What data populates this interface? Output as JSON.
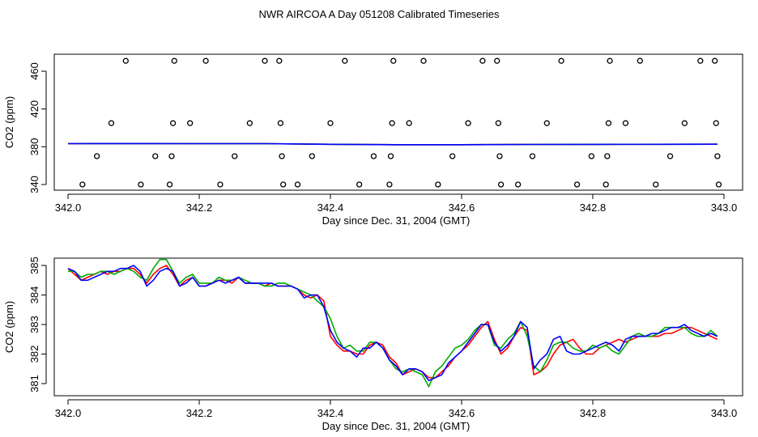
{
  "title": "NWR AIRCOA A  Day 051208  Calibrated Timeseries",
  "chart_data": [
    {
      "type": "scatter",
      "xlabel": "Day since Dec. 31, 2004 (GMT)",
      "ylabel": "CO2 (ppm)",
      "xlim": [
        342.0,
        343.0
      ],
      "ylim": [
        334,
        472
      ],
      "xticks": [
        342.0,
        342.2,
        342.4,
        342.6,
        342.8,
        343.0
      ],
      "xtick_labels": [
        "342.0",
        "342.2",
        "342.4",
        "342.6",
        "342.8",
        "343.0"
      ],
      "yticks": [
        340,
        380,
        420,
        460
      ],
      "ytick_labels": [
        "340",
        "380",
        "420",
        "460"
      ],
      "markers": [
        [
          342.022,
          340
        ],
        [
          342.044,
          370
        ],
        [
          342.066,
          405
        ],
        [
          342.088,
          471
        ],
        [
          342.111,
          340
        ],
        [
          342.133,
          370
        ],
        [
          342.155,
          340
        ],
        [
          342.158,
          370
        ],
        [
          342.16,
          405
        ],
        [
          342.162,
          471
        ],
        [
          342.186,
          405
        ],
        [
          342.21,
          471
        ],
        [
          342.232,
          340
        ],
        [
          342.254,
          370
        ],
        [
          342.277,
          405
        ],
        [
          342.3,
          471
        ],
        [
          342.322,
          471
        ],
        [
          342.324,
          405
        ],
        [
          342.326,
          370
        ],
        [
          342.328,
          340
        ],
        [
          342.35,
          340
        ],
        [
          342.372,
          370
        ],
        [
          342.4,
          405
        ],
        [
          342.422,
          471
        ],
        [
          342.444,
          340
        ],
        [
          342.466,
          370
        ],
        [
          342.49,
          340
        ],
        [
          342.492,
          370
        ],
        [
          342.494,
          405
        ],
        [
          342.496,
          471
        ],
        [
          342.52,
          405
        ],
        [
          342.542,
          471
        ],
        [
          342.564,
          340
        ],
        [
          342.586,
          370
        ],
        [
          342.61,
          405
        ],
        [
          342.632,
          471
        ],
        [
          342.654,
          471
        ],
        [
          342.656,
          405
        ],
        [
          342.658,
          370
        ],
        [
          342.66,
          340
        ],
        [
          342.686,
          340
        ],
        [
          342.708,
          370
        ],
        [
          342.73,
          405
        ],
        [
          342.752,
          471
        ],
        [
          342.776,
          340
        ],
        [
          342.798,
          370
        ],
        [
          342.82,
          340
        ],
        [
          342.822,
          370
        ],
        [
          342.824,
          405
        ],
        [
          342.826,
          471
        ],
        [
          342.85,
          405
        ],
        [
          342.872,
          471
        ],
        [
          342.896,
          340
        ],
        [
          342.918,
          370
        ],
        [
          342.94,
          405
        ],
        [
          342.964,
          471
        ],
        [
          342.986,
          471
        ],
        [
          342.988,
          405
        ],
        [
          342.99,
          370
        ],
        [
          342.992,
          340
        ]
      ],
      "series": [
        {
          "color": "#ff0000",
          "x": [
            342.0,
            342.1,
            342.2,
            342.3,
            342.4,
            342.5,
            342.6,
            342.7,
            342.8,
            342.9,
            342.99
          ],
          "y": [
            383.3,
            383.4,
            383.3,
            383.3,
            382.6,
            382.2,
            382.2,
            382.4,
            382.5,
            382.6,
            382.7
          ]
        },
        {
          "color": "#00aa00",
          "x": [
            342.0,
            342.1,
            342.2,
            342.3,
            342.4,
            342.5,
            342.6,
            342.7,
            342.8,
            342.9,
            342.99
          ],
          "y": [
            383.3,
            383.4,
            383.3,
            383.3,
            382.6,
            382.2,
            382.2,
            382.4,
            382.5,
            382.6,
            382.7
          ]
        },
        {
          "color": "#0000ff",
          "x": [
            342.0,
            342.1,
            342.2,
            342.3,
            342.4,
            342.5,
            342.6,
            342.7,
            342.8,
            342.9,
            342.99
          ],
          "y": [
            383.3,
            383.4,
            383.3,
            383.3,
            382.6,
            382.2,
            382.2,
            382.4,
            382.5,
            382.6,
            382.7
          ]
        }
      ]
    },
    {
      "type": "line",
      "xlabel": "Day since Dec. 31, 2004 (GMT)",
      "ylabel": "CO2 (ppm)",
      "xlim": [
        342.0,
        343.0
      ],
      "ylim": [
        380.8,
        385.3
      ],
      "xticks": [
        342.0,
        342.2,
        342.4,
        342.6,
        342.8,
        343.0
      ],
      "xtick_labels": [
        "342.0",
        "342.2",
        "342.4",
        "342.6",
        "342.8",
        "343.0"
      ],
      "yticks": [
        381,
        382,
        383,
        384,
        385
      ],
      "ytick_labels": [
        "381",
        "382",
        "383",
        "384",
        "385"
      ],
      "series": [
        {
          "color": "#ff0000",
          "x": [
            342.0,
            342.01,
            342.02,
            342.03,
            342.04,
            342.05,
            342.06,
            342.07,
            342.08,
            342.09,
            342.1,
            342.11,
            342.12,
            342.13,
            342.14,
            342.15,
            342.16,
            342.17,
            342.18,
            342.19,
            342.2,
            342.21,
            342.22,
            342.23,
            342.24,
            342.25,
            342.26,
            342.27,
            342.28,
            342.29,
            342.3,
            342.31,
            342.32,
            342.33,
            342.34,
            342.35,
            342.36,
            342.37,
            342.38,
            342.39,
            342.4,
            342.41,
            342.42,
            342.43,
            342.44,
            342.45,
            342.46,
            342.47,
            342.48,
            342.49,
            342.5,
            342.51,
            342.52,
            342.53,
            342.54,
            342.55,
            342.56,
            342.57,
            342.58,
            342.59,
            342.6,
            342.61,
            342.62,
            342.63,
            342.64,
            342.65,
            342.66,
            342.67,
            342.68,
            342.69,
            342.7,
            342.71,
            342.72,
            342.73,
            342.74,
            342.75,
            342.76,
            342.77,
            342.78,
            342.79,
            342.8,
            342.81,
            342.82,
            342.83,
            342.84,
            342.85,
            342.86,
            342.87,
            342.88,
            342.89,
            342.9,
            342.91,
            342.92,
            342.93,
            342.94,
            342.95,
            342.96,
            342.97,
            342.98,
            342.99
          ],
          "y": [
            384.9,
            384.7,
            384.5,
            384.6,
            384.7,
            384.8,
            384.7,
            384.8,
            384.8,
            384.9,
            384.9,
            384.7,
            384.4,
            384.7,
            384.9,
            385.0,
            384.7,
            384.3,
            384.5,
            384.6,
            384.3,
            384.3,
            384.4,
            384.5,
            384.5,
            384.4,
            384.6,
            384.4,
            384.4,
            384.4,
            384.3,
            384.4,
            384.3,
            384.3,
            384.3,
            384.2,
            384.0,
            383.9,
            384.0,
            383.8,
            382.6,
            382.3,
            382.1,
            382.1,
            382.0,
            382.0,
            382.3,
            382.4,
            382.3,
            381.9,
            381.7,
            381.3,
            381.4,
            381.5,
            381.4,
            381.2,
            381.2,
            381.4,
            381.6,
            381.9,
            382.1,
            382.3,
            382.6,
            382.9,
            383.1,
            382.5,
            382.0,
            382.2,
            382.6,
            382.9,
            382.8,
            381.3,
            381.4,
            381.6,
            382.0,
            382.3,
            382.4,
            382.5,
            382.2,
            382.0,
            382.0,
            382.2,
            382.3,
            382.4,
            382.5,
            382.4,
            382.5,
            382.6,
            382.6,
            382.6,
            382.6,
            382.7,
            382.7,
            382.8,
            382.9,
            382.9,
            382.8,
            382.7,
            382.6,
            382.5
          ]
        },
        {
          "color": "#00aa00",
          "x": [
            342.0,
            342.01,
            342.02,
            342.03,
            342.04,
            342.05,
            342.06,
            342.07,
            342.08,
            342.09,
            342.1,
            342.11,
            342.12,
            342.13,
            342.14,
            342.15,
            342.16,
            342.17,
            342.18,
            342.19,
            342.2,
            342.21,
            342.22,
            342.23,
            342.24,
            342.25,
            342.26,
            342.27,
            342.28,
            342.29,
            342.3,
            342.31,
            342.32,
            342.33,
            342.34,
            342.35,
            342.36,
            342.37,
            342.38,
            342.39,
            342.4,
            342.41,
            342.42,
            342.43,
            342.44,
            342.45,
            342.46,
            342.47,
            342.48,
            342.49,
            342.5,
            342.51,
            342.52,
            342.53,
            342.54,
            342.55,
            342.56,
            342.57,
            342.58,
            342.59,
            342.6,
            342.61,
            342.62,
            342.63,
            342.64,
            342.65,
            342.66,
            342.67,
            342.68,
            342.69,
            342.7,
            342.71,
            342.72,
            342.73,
            342.74,
            342.75,
            342.76,
            342.77,
            342.78,
            342.79,
            342.8,
            342.81,
            342.82,
            342.83,
            342.84,
            342.85,
            342.86,
            342.87,
            342.88,
            342.89,
            342.9,
            342.91,
            342.92,
            342.93,
            342.94,
            342.95,
            342.96,
            342.97,
            342.98,
            342.99
          ],
          "y": [
            384.8,
            384.8,
            384.6,
            384.7,
            384.7,
            384.8,
            384.8,
            384.7,
            384.8,
            384.9,
            384.8,
            384.6,
            384.5,
            384.9,
            385.2,
            385.2,
            384.8,
            384.4,
            384.6,
            384.7,
            384.4,
            384.4,
            384.4,
            384.6,
            384.5,
            384.5,
            384.6,
            384.5,
            384.4,
            384.4,
            384.3,
            384.3,
            384.4,
            384.4,
            384.3,
            384.2,
            384.1,
            384.0,
            383.8,
            383.6,
            383.2,
            382.6,
            382.2,
            382.3,
            382.1,
            382.1,
            382.4,
            382.4,
            382.2,
            381.8,
            381.5,
            381.4,
            381.5,
            381.4,
            381.3,
            380.9,
            381.4,
            381.6,
            381.9,
            382.2,
            382.3,
            382.5,
            382.8,
            383.0,
            383.0,
            382.3,
            382.2,
            382.5,
            382.7,
            383.1,
            382.6,
            381.6,
            381.4,
            381.8,
            382.3,
            382.4,
            382.4,
            382.2,
            382.1,
            382.1,
            382.3,
            382.2,
            382.3,
            382.1,
            382.0,
            382.3,
            382.6,
            382.7,
            382.6,
            382.6,
            382.7,
            382.9,
            382.9,
            382.9,
            382.9,
            382.7,
            382.6,
            382.6,
            382.8,
            382.6
          ]
        },
        {
          "color": "#0000ff",
          "x": [
            342.0,
            342.01,
            342.02,
            342.03,
            342.04,
            342.05,
            342.06,
            342.07,
            342.08,
            342.09,
            342.1,
            342.11,
            342.12,
            342.13,
            342.14,
            342.15,
            342.16,
            342.17,
            342.18,
            342.19,
            342.2,
            342.21,
            342.22,
            342.23,
            342.24,
            342.25,
            342.26,
            342.27,
            342.28,
            342.29,
            342.3,
            342.31,
            342.32,
            342.33,
            342.34,
            342.35,
            342.36,
            342.37,
            342.38,
            342.39,
            342.4,
            342.41,
            342.42,
            342.43,
            342.44,
            342.45,
            342.46,
            342.47,
            342.48,
            342.49,
            342.5,
            342.51,
            342.52,
            342.53,
            342.54,
            342.55,
            342.56,
            342.57,
            342.58,
            342.59,
            342.6,
            342.61,
            342.62,
            342.63,
            342.64,
            342.65,
            342.66,
            342.67,
            342.68,
            342.69,
            342.7,
            342.71,
            342.72,
            342.73,
            342.74,
            342.75,
            342.76,
            342.77,
            342.78,
            342.79,
            342.8,
            342.81,
            342.82,
            342.83,
            342.84,
            342.85,
            342.86,
            342.87,
            342.88,
            342.89,
            342.9,
            342.91,
            342.92,
            342.93,
            342.94,
            342.95,
            342.96,
            342.97,
            342.98,
            342.99
          ],
          "y": [
            384.9,
            384.8,
            384.5,
            384.5,
            384.6,
            384.7,
            384.8,
            384.8,
            384.9,
            384.9,
            385.0,
            384.8,
            384.3,
            384.5,
            384.8,
            384.9,
            384.8,
            384.3,
            384.4,
            384.6,
            384.3,
            384.3,
            384.4,
            384.5,
            384.4,
            384.5,
            384.6,
            384.4,
            384.4,
            384.4,
            384.4,
            384.4,
            384.3,
            384.3,
            384.3,
            384.2,
            383.9,
            384.0,
            384.0,
            383.6,
            382.8,
            382.4,
            382.2,
            382.1,
            381.9,
            382.2,
            382.2,
            382.4,
            382.2,
            381.8,
            381.6,
            381.3,
            381.5,
            381.5,
            381.4,
            381.1,
            381.2,
            381.3,
            381.7,
            381.9,
            382.1,
            382.4,
            382.7,
            383.0,
            383.0,
            382.4,
            382.1,
            382.3,
            382.6,
            383.1,
            382.9,
            381.5,
            381.8,
            382.0,
            382.5,
            382.6,
            382.1,
            382.0,
            382.0,
            382.1,
            382.2,
            382.3,
            382.4,
            382.3,
            382.1,
            382.5,
            382.6,
            382.6,
            382.6,
            382.7,
            382.7,
            382.8,
            382.9,
            382.9,
            383.0,
            382.8,
            382.7,
            382.6,
            382.7,
            382.6
          ]
        }
      ]
    }
  ]
}
